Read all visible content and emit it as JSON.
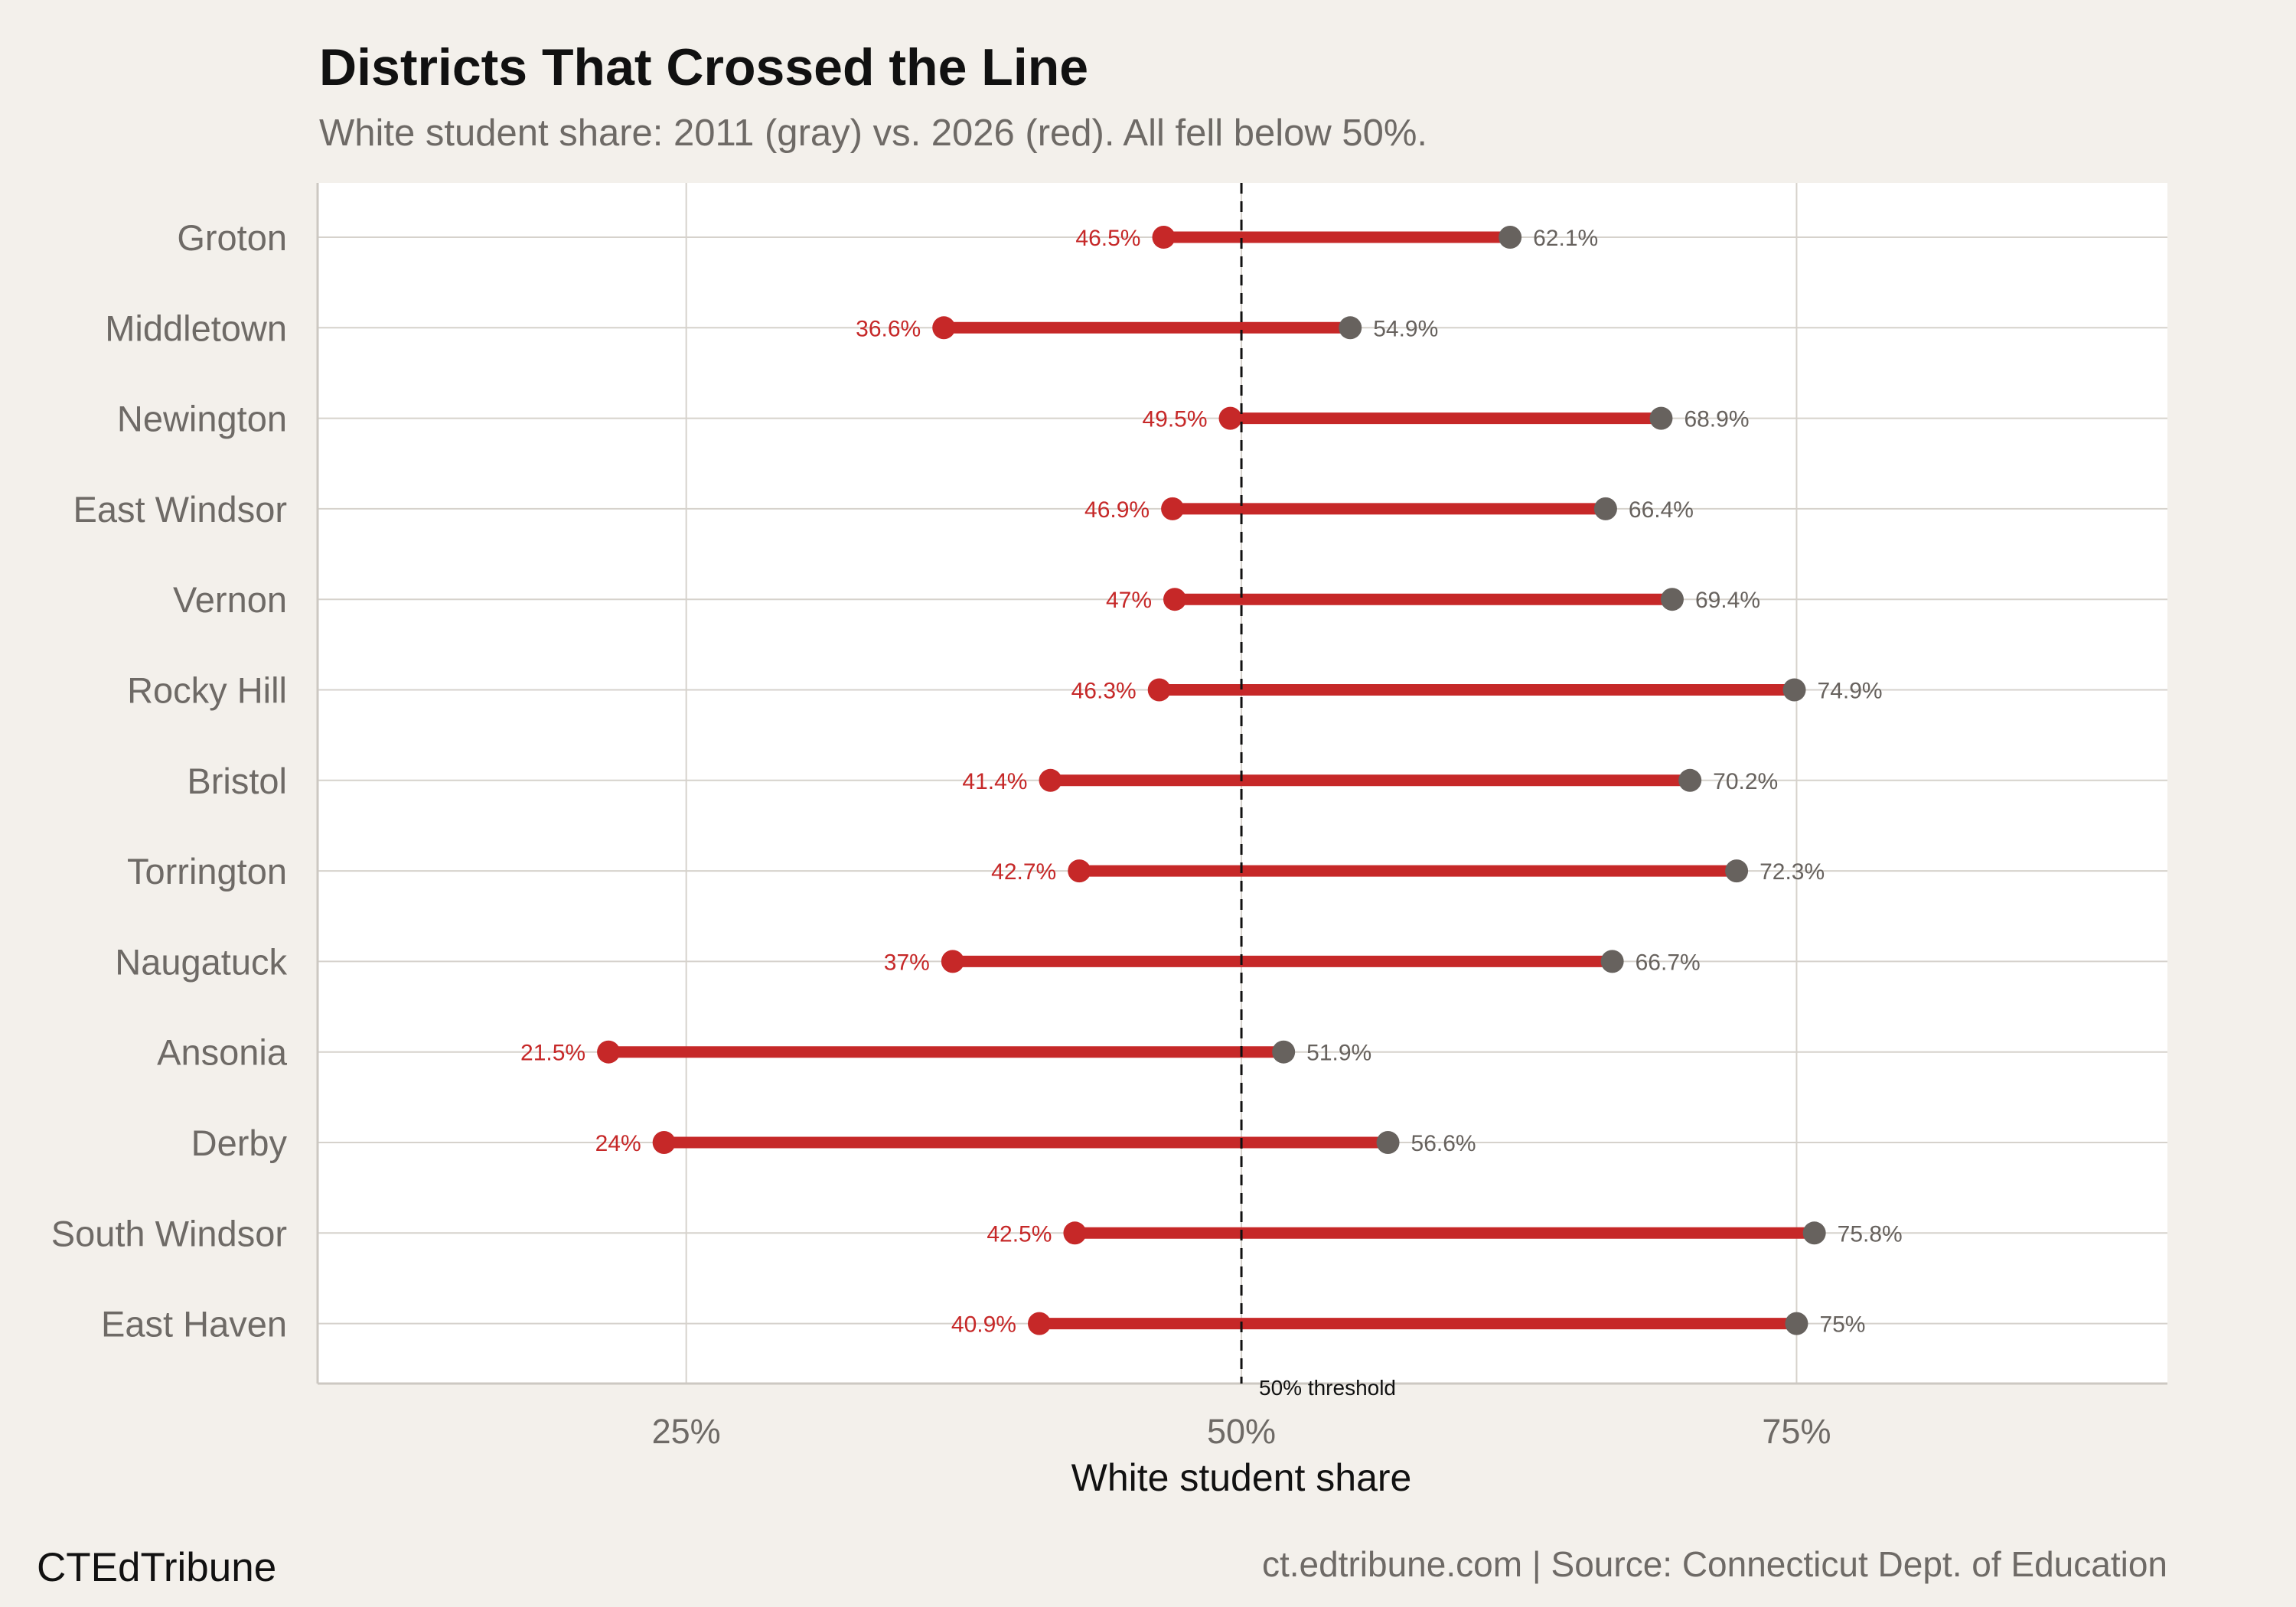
{
  "chart_data": {
    "type": "dumbbell",
    "title": "Districts That Crossed the Line",
    "subtitle": "White student share: 2011 (gray) vs. 2026 (red). All fell below 50%.",
    "xlabel": "White student share",
    "ylabel": "",
    "xlim": [
      8.4,
      91.7
    ],
    "xticks": [
      25,
      50,
      75
    ],
    "xtick_labels": [
      "25%",
      "50%",
      "75%"
    ],
    "grid": true,
    "reference_line": {
      "value": 50,
      "label": "50% threshold",
      "style": "dashed"
    },
    "categories": [
      "Groton",
      "Middletown",
      "Newington",
      "East Windsor",
      "Vernon",
      "Rocky Hill",
      "Bristol",
      "Torrington",
      "Naugatuck",
      "Ansonia",
      "Derby",
      "South Windsor",
      "East Haven"
    ],
    "series": [
      {
        "name": "2011",
        "color": "#67625e",
        "values": [
          62.1,
          54.9,
          68.9,
          66.4,
          69.4,
          74.9,
          70.2,
          72.3,
          66.7,
          51.9,
          56.6,
          75.8,
          75
        ],
        "labels": [
          "62.1%",
          "54.9%",
          "68.9%",
          "66.4%",
          "69.4%",
          "74.9%",
          "70.2%",
          "72.3%",
          "66.7%",
          "51.9%",
          "56.6%",
          "75.8%",
          "75%"
        ]
      },
      {
        "name": "2026",
        "color": "#c62828",
        "values": [
          46.5,
          36.6,
          49.5,
          46.9,
          47,
          46.3,
          41.4,
          42.7,
          37,
          21.5,
          24,
          42.5,
          40.9
        ],
        "labels": [
          "46.5%",
          "36.6%",
          "49.5%",
          "46.9%",
          "47%",
          "46.3%",
          "41.4%",
          "42.7%",
          "37%",
          "21.5%",
          "24%",
          "42.5%",
          "40.9%"
        ]
      }
    ]
  },
  "footer": {
    "brand": "CTEdTribune",
    "source": "ct.edtribune.com | Source: Connecticut Dept. of Education"
  }
}
